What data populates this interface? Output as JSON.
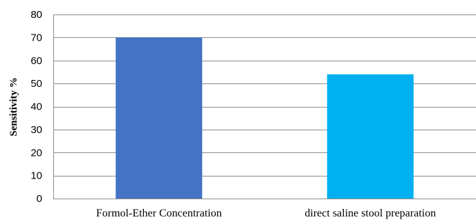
{
  "chart_data": {
    "type": "bar",
    "title": "",
    "xlabel": "",
    "ylabel": "Sensitivity %",
    "ylim": [
      0,
      80
    ],
    "yticks": [
      0,
      10,
      20,
      30,
      40,
      50,
      60,
      70,
      80
    ],
    "grid": true,
    "categories": [
      "Formol-Ether Concentration",
      "direct saline stool preparation"
    ],
    "values": [
      70,
      54
    ],
    "colors": [
      "#4472C4",
      "#00B0F0"
    ]
  }
}
